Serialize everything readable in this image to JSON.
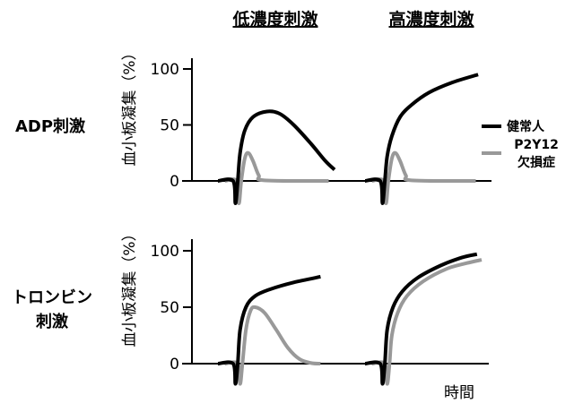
{
  "chart_data": {
    "type": "line",
    "column_headers": [
      "低濃度刺激",
      "高濃度刺激"
    ],
    "row_headers": [
      "ADP刺激",
      "トロンビン\n刺激"
    ],
    "row_header_lines": [
      [
        "ADP刺激"
      ],
      [
        "トロンビン",
        "刺激"
      ]
    ],
    "ylabel": "血小板凝集（%）",
    "xlabel": "時間",
    "yticks": [
      "0",
      "50",
      "100"
    ],
    "ylim": [
      0,
      100
    ],
    "grid": false,
    "legend_placement": "right",
    "legend": [
      {
        "lines": [
          "健常人"
        ],
        "color": "#000000"
      },
      {
        "lines": [
          "P2Y12",
          "欠損症"
        ],
        "color": "#999999"
      }
    ],
    "panels": [
      {
        "row": 0,
        "col": 0,
        "series": [
          {
            "color": "#000000",
            "points": [
              [
                0,
                0
              ],
              [
                1.3,
                0
              ],
              [
                1.5,
                -20
              ],
              [
                1.7,
                0
              ],
              [
                1.9,
                25
              ],
              [
                2.3,
                45
              ],
              [
                3,
                57
              ],
              [
                4.2,
                62
              ],
              [
                5.3,
                60
              ],
              [
                6.5,
                50
              ],
              [
                8,
                33
              ],
              [
                9.2,
                18
              ],
              [
                10,
                10
              ]
            ]
          },
          {
            "color": "#999999",
            "points": [
              [
                0.6,
                0
              ],
              [
                1.6,
                0
              ],
              [
                1.8,
                -20
              ],
              [
                2,
                0
              ],
              [
                2.3,
                20
              ],
              [
                2.6,
                25
              ],
              [
                3,
                18
              ],
              [
                3.5,
                5
              ],
              [
                4,
                0.5
              ],
              [
                9.5,
                0
              ]
            ]
          }
        ]
      },
      {
        "row": 0,
        "col": 1,
        "series": [
          {
            "color": "#000000",
            "points": [
              [
                0,
                0
              ],
              [
                1.3,
                0
              ],
              [
                1.5,
                -20
              ],
              [
                1.7,
                0
              ],
              [
                1.9,
                22
              ],
              [
                2.3,
                40
              ],
              [
                3,
                57
              ],
              [
                4,
                68
              ],
              [
                5.5,
                79
              ],
              [
                7.5,
                88
              ],
              [
                9.7,
                95
              ]
            ]
          },
          {
            "color": "#999999",
            "points": [
              [
                0.6,
                0
              ],
              [
                1.6,
                0
              ],
              [
                1.8,
                -20
              ],
              [
                2,
                0
              ],
              [
                2.3,
                20
              ],
              [
                2.6,
                25
              ],
              [
                3,
                18
              ],
              [
                3.5,
                5
              ],
              [
                4,
                0.5
              ],
              [
                9.5,
                0
              ]
            ]
          }
        ]
      },
      {
        "row": 1,
        "col": 0,
        "series": [
          {
            "color": "#000000",
            "points": [
              [
                0,
                0
              ],
              [
                1.3,
                0
              ],
              [
                1.5,
                -18
              ],
              [
                1.7,
                0
              ],
              [
                1.9,
                30
              ],
              [
                2.4,
                50
              ],
              [
                3.2,
                60
              ],
              [
                4.5,
                66
              ],
              [
                6.5,
                72
              ],
              [
                8.8,
                77
              ]
            ]
          },
          {
            "color": "#999999",
            "points": [
              [
                0.6,
                0
              ],
              [
                1.7,
                0
              ],
              [
                1.9,
                -18
              ],
              [
                2.1,
                0
              ],
              [
                2.4,
                30
              ],
              [
                2.8,
                47
              ],
              [
                3.2,
                50
              ],
              [
                4,
                45
              ],
              [
                5,
                30
              ],
              [
                6,
                14
              ],
              [
                7,
                4
              ],
              [
                8,
                0.5
              ],
              [
                8.8,
                0
              ]
            ]
          }
        ]
      },
      {
        "row": 1,
        "col": 1,
        "series": [
          {
            "color": "#000000",
            "points": [
              [
                0,
                0
              ],
              [
                1.3,
                0
              ],
              [
                1.5,
                -18
              ],
              [
                1.7,
                0
              ],
              [
                1.9,
                30
              ],
              [
                2.4,
                50
              ],
              [
                3.2,
                64
              ],
              [
                4.5,
                76
              ],
              [
                6.5,
                87
              ],
              [
                8.3,
                94
              ],
              [
                9.6,
                97
              ]
            ]
          },
          {
            "color": "#999999",
            "points": [
              [
                0.6,
                0
              ],
              [
                1.7,
                0
              ],
              [
                1.9,
                -18
              ],
              [
                2.1,
                0
              ],
              [
                2.3,
                25
              ],
              [
                2.8,
                45
              ],
              [
                3.6,
                60
              ],
              [
                5,
                73
              ],
              [
                7,
                84
              ],
              [
                8.7,
                89
              ],
              [
                10,
                92
              ]
            ]
          }
        ]
      }
    ]
  }
}
